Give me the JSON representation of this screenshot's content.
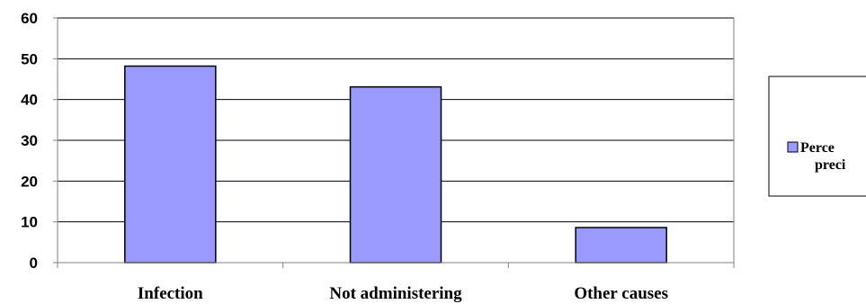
{
  "chart_data": {
    "type": "bar",
    "categories": [
      "Infection",
      "Not administering",
      "Other causes"
    ],
    "series": [
      {
        "name": "Percentage of precipitating factors",
        "values": [
          48.2,
          43.1,
          8.6
        ]
      }
    ],
    "ylim": [
      0,
      60
    ],
    "yticks": [
      0,
      10,
      20,
      30,
      40,
      50,
      60
    ],
    "grid": true,
    "legend": "right",
    "legend_visible_text": [
      "Perce",
      "preci"
    ],
    "colors": {
      "bar_fill": "#9999ff",
      "bar_stroke": "#000000",
      "grid": "#000000",
      "axis": "#808080",
      "legend_border": "#000000"
    }
  }
}
